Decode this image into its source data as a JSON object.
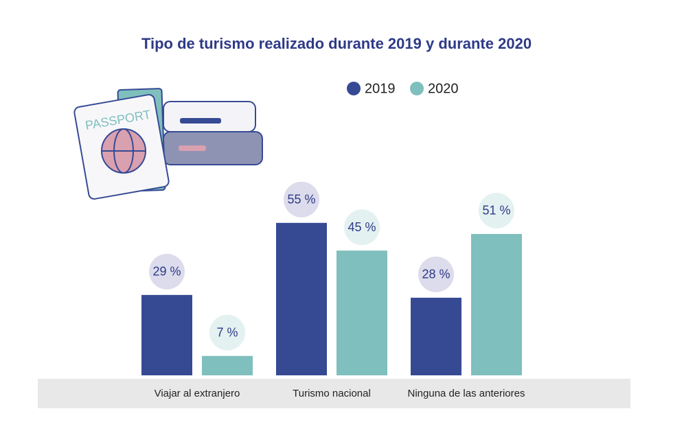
{
  "chart_data": {
    "type": "bar",
    "title": "Tipo de turismo realizado durante 2019 y durante 2020",
    "categories": [
      "Viajar al extranjero",
      "Turismo nacional",
      "Ninguna de las anteriores"
    ],
    "series": [
      {
        "name": "2019",
        "color": "#364a94",
        "values": [
          29,
          55,
          28
        ],
        "value_labels": [
          "29 %",
          "55 %",
          "28 %"
        ]
      },
      {
        "name": "2020",
        "color": "#7fbfbd",
        "values": [
          7,
          45,
          51
        ],
        "value_labels": [
          "7 %",
          "45 %",
          "51 %"
        ]
      }
    ],
    "annotations": [
      "PASSPORT"
    ]
  }
}
